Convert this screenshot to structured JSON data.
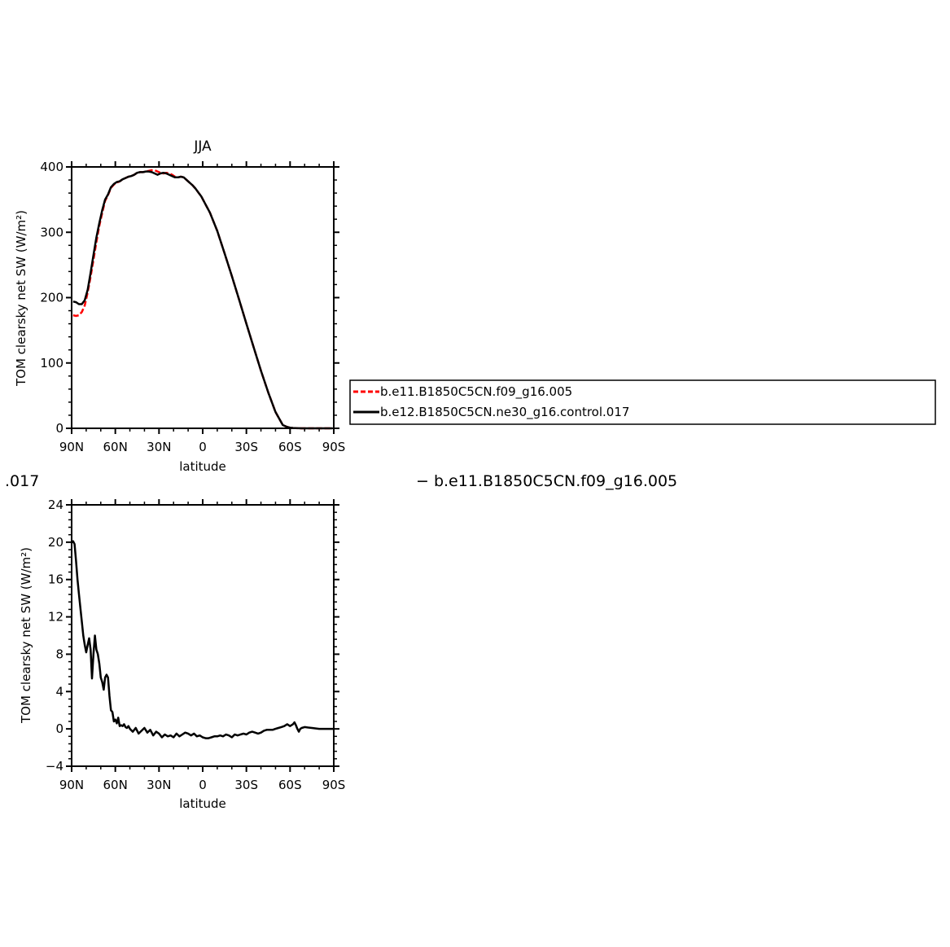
{
  "chart_data": [
    {
      "type": "line",
      "title": "JJA",
      "xlabel": "latitude",
      "ylabel": "TOM clearsky net SW (W/m²)",
      "xlim": [
        90,
        -90
      ],
      "ylim": [
        0,
        400
      ],
      "xticks": [
        90,
        60,
        30,
        0,
        -30,
        -60,
        -90
      ],
      "xtick_labels": [
        "90N",
        "60N",
        "30N",
        "0",
        "30S",
        "60S",
        "90S"
      ],
      "yticks": [
        0,
        100,
        200,
        300,
        400
      ],
      "ytick_labels": [
        "0",
        "100",
        "200",
        "300",
        "400"
      ],
      "legend": "right",
      "series": [
        {
          "name": "b.e11.B1850C5CN.f09_g16.005",
          "color": "#ff0000",
          "dash": "dashed",
          "x": [
            89,
            87,
            85,
            83,
            81,
            79,
            77,
            75,
            73,
            71,
            69,
            67,
            65,
            63,
            61,
            59,
            57,
            55,
            53,
            51,
            49,
            47,
            45,
            43,
            41,
            39,
            37,
            35,
            33,
            31,
            29,
            27,
            25,
            23,
            21,
            19,
            17,
            15,
            13,
            11,
            9,
            7,
            5,
            3,
            1,
            -5,
            -10,
            -15,
            -20,
            -25,
            -30,
            -35,
            -40,
            -45,
            -50,
            -55,
            -58,
            -60,
            -62,
            -64,
            -66,
            -68,
            -70,
            -75,
            -80,
            -85,
            -89
          ],
          "y": [
            173,
            172,
            173,
            178,
            188,
            208,
            232,
            258,
            285,
            310,
            330,
            348,
            357,
            368,
            373,
            376,
            378,
            381,
            383,
            385,
            386,
            388,
            391,
            392,
            392,
            393,
            394,
            395,
            395,
            393,
            391,
            390,
            391,
            390,
            388,
            385,
            384,
            385,
            384,
            380,
            376,
            372,
            367,
            361,
            355,
            330,
            302,
            268,
            233,
            197,
            160,
            124,
            88,
            55,
            25,
            5,
            2,
            1,
            0.5,
            0.2,
            0.1,
            0,
            0,
            0,
            0,
            0,
            0
          ]
        },
        {
          "name": "b.e12.B1850C5CN.ne30_g16.control.017",
          "color": "#000000",
          "dash": "solid",
          "x": [
            89,
            87,
            85,
            83,
            81,
            79,
            77,
            75,
            73,
            71,
            69,
            67,
            65,
            63,
            61,
            59,
            57,
            55,
            53,
            51,
            49,
            47,
            45,
            43,
            41,
            39,
            37,
            35,
            33,
            31,
            29,
            27,
            25,
            23,
            21,
            19,
            17,
            15,
            13,
            11,
            9,
            7,
            5,
            3,
            1,
            -5,
            -10,
            -15,
            -20,
            -25,
            -30,
            -35,
            -40,
            -45,
            -50,
            -55,
            -58,
            -60,
            -62,
            -64,
            -66,
            -68,
            -70,
            -75,
            -80,
            -85,
            -89
          ],
          "y": [
            194,
            193,
            190,
            190,
            196,
            212,
            238,
            265,
            292,
            314,
            334,
            350,
            358,
            369,
            374,
            377,
            378,
            381,
            383,
            385,
            386,
            388,
            391,
            392,
            392,
            393,
            393,
            392,
            390,
            388,
            390,
            391,
            390,
            388,
            386,
            384,
            384,
            385,
            384,
            380,
            376,
            372,
            367,
            361,
            355,
            330,
            302,
            268,
            233,
            197,
            160,
            124,
            88,
            55,
            25,
            5,
            2,
            1,
            0.5,
            0.2,
            0.1,
            0,
            0,
            0,
            0,
            0,
            0
          ]
        }
      ]
    },
    {
      "type": "line",
      "xlabel": "latitude",
      "ylabel": "TOM clearsky net SW (W/m²)",
      "xlim": [
        90,
        -90
      ],
      "ylim": [
        -4,
        24
      ],
      "xticks": [
        90,
        60,
        30,
        0,
        -30,
        -60,
        -90
      ],
      "xtick_labels": [
        "90N",
        "60N",
        "30N",
        "0",
        "30S",
        "60S",
        "90S"
      ],
      "yticks": [
        -4,
        0,
        4,
        8,
        12,
        16,
        20,
        24
      ],
      "ytick_labels": [
        "−4",
        "0",
        "4",
        "8",
        "12",
        "16",
        "20",
        "24"
      ],
      "series": [
        {
          "color": "#000000",
          "x": [
            90,
            89,
            88,
            87,
            86,
            85,
            84,
            83,
            82,
            81,
            80,
            79,
            78,
            77,
            76,
            75,
            74,
            73,
            72,
            71,
            70,
            69,
            68,
            67,
            66,
            65,
            64,
            63,
            62,
            61,
            60,
            59,
            58,
            57,
            56,
            55,
            54,
            53,
            52,
            51,
            50,
            48,
            46,
            44,
            42,
            40,
            38,
            36,
            34,
            32,
            30,
            28,
            26,
            24,
            22,
            20,
            18,
            16,
            14,
            12,
            10,
            8,
            6,
            4,
            2,
            0,
            -2,
            -4,
            -6,
            -8,
            -10,
            -12,
            -14,
            -16,
            -18,
            -20,
            -22,
            -24,
            -26,
            -28,
            -30,
            -32,
            -34,
            -36,
            -38,
            -40,
            -42,
            -44,
            -46,
            -48,
            -50,
            -52,
            -54,
            -56,
            -58,
            -60,
            -62,
            -63,
            -64,
            -65,
            -66,
            -67,
            -68,
            -70,
            -72,
            -75,
            -80,
            -85,
            -90
          ],
          "y": [
            20,
            20.1,
            19.8,
            18,
            16,
            14.5,
            13,
            11.5,
            10,
            9,
            8.2,
            9,
            9.7,
            8.5,
            5.4,
            8,
            10,
            8.5,
            8,
            7,
            5.5,
            5,
            4.2,
            5.5,
            5.8,
            5.5,
            3.5,
            2,
            1.8,
            0.8,
            1,
            0.6,
            1.2,
            0.3,
            0.4,
            0.3,
            0.5,
            0.2,
            0.1,
            0.3,
            0.0,
            -0.3,
            0.1,
            -0.5,
            -0.2,
            0.1,
            -0.4,
            -0.1,
            -0.7,
            -0.3,
            -0.5,
            -0.9,
            -0.6,
            -0.8,
            -0.7,
            -0.9,
            -0.5,
            -0.8,
            -0.6,
            -0.4,
            -0.5,
            -0.7,
            -0.5,
            -0.8,
            -0.7,
            -0.9,
            -1.0,
            -1.0,
            -0.9,
            -0.8,
            -0.8,
            -0.7,
            -0.8,
            -0.6,
            -0.7,
            -0.9,
            -0.6,
            -0.7,
            -0.6,
            -0.5,
            -0.6,
            -0.4,
            -0.3,
            -0.4,
            -0.5,
            -0.4,
            -0.2,
            -0.1,
            -0.1,
            -0.1,
            0.0,
            0.1,
            0.2,
            0.3,
            0.5,
            0.3,
            0.5,
            0.7,
            0.4,
            0.0,
            -0.3,
            0.0,
            0.1,
            0.2,
            0.15,
            0.1,
            0.0,
            0.0,
            0.0
          ]
        }
      ]
    }
  ],
  "fragments": {
    "left_cut": ".017",
    "right_cut": "− b.e11.B1850C5CN.f09_g16.005"
  }
}
